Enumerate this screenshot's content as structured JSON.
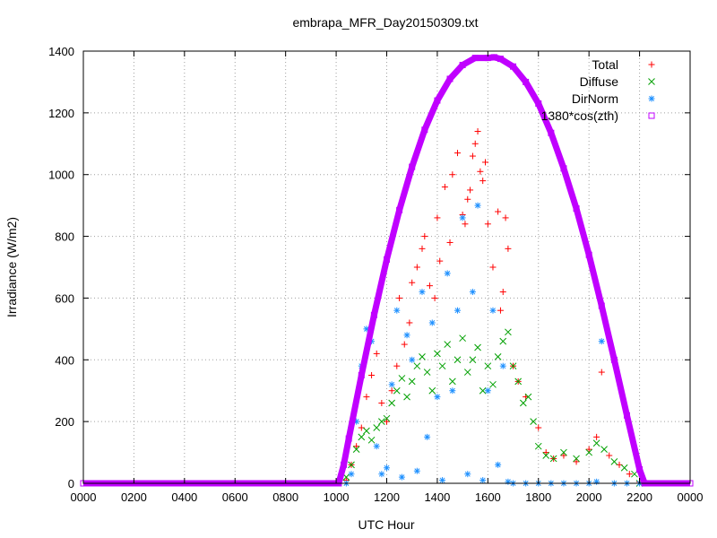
{
  "chart_data": {
    "type": "scatter",
    "title": "embrapa_MFR_Day20150309.txt",
    "xlabel": "UTC Hour",
    "ylabel": "Irradiance (W/m2)",
    "xlim": [
      0,
      24
    ],
    "ylim": [
      0,
      1400
    ],
    "grid": true,
    "legend_position": "top-right",
    "x_ticks": [
      {
        "v": 0,
        "label": "0000"
      },
      {
        "v": 2,
        "label": "0200"
      },
      {
        "v": 4,
        "label": "0400"
      },
      {
        "v": 6,
        "label": "0600"
      },
      {
        "v": 8,
        "label": "0800"
      },
      {
        "v": 10,
        "label": "1000"
      },
      {
        "v": 12,
        "label": "1200"
      },
      {
        "v": 14,
        "label": "1400"
      },
      {
        "v": 16,
        "label": "1600"
      },
      {
        "v": 18,
        "label": "1800"
      },
      {
        "v": 20,
        "label": "2000"
      },
      {
        "v": 22,
        "label": "2200"
      },
      {
        "v": 24,
        "label": "0000"
      }
    ],
    "y_ticks": [
      0,
      200,
      400,
      600,
      800,
      1000,
      1200,
      1400
    ],
    "series": [
      {
        "name": "Total",
        "marker": "plus",
        "color": "#ff0000",
        "x": [
          10.4,
          10.6,
          10.8,
          11.0,
          11.2,
          11.4,
          11.6,
          11.8,
          12.0,
          12.2,
          12.4,
          12.5,
          12.7,
          12.9,
          13.0,
          13.2,
          13.4,
          13.5,
          13.7,
          13.9,
          14.0,
          14.1,
          14.3,
          14.5,
          14.6,
          14.8,
          15.0,
          15.1,
          15.2,
          15.3,
          15.4,
          15.5,
          15.6,
          15.7,
          15.8,
          15.9,
          16.0,
          16.2,
          16.4,
          16.5,
          16.6,
          16.7,
          16.8,
          17.0,
          17.2,
          17.5,
          18.0,
          18.3,
          18.6,
          19.0,
          19.5,
          20.0,
          20.3,
          20.5,
          20.8,
          21.2,
          21.6,
          22.0,
          22.2
        ],
        "y": [
          10,
          60,
          120,
          180,
          280,
          350,
          420,
          260,
          200,
          300,
          380,
          600,
          450,
          520,
          650,
          700,
          760,
          800,
          640,
          600,
          860,
          720,
          960,
          780,
          1000,
          1070,
          870,
          840,
          920,
          950,
          1060,
          1100,
          1140,
          1010,
          980,
          1040,
          840,
          700,
          880,
          560,
          620,
          860,
          760,
          380,
          330,
          280,
          180,
          100,
          80,
          90,
          70,
          110,
          150,
          360,
          90,
          60,
          30,
          5,
          0
        ]
      },
      {
        "name": "Diffuse",
        "marker": "cross",
        "color": "#00a000",
        "x": [
          10.4,
          10.6,
          10.8,
          11.0,
          11.2,
          11.4,
          11.6,
          11.8,
          12.0,
          12.2,
          12.4,
          12.6,
          12.8,
          13.0,
          13.2,
          13.4,
          13.6,
          13.8,
          14.0,
          14.2,
          14.4,
          14.6,
          14.8,
          15.0,
          15.2,
          15.4,
          15.6,
          15.8,
          16.0,
          16.2,
          16.4,
          16.6,
          16.8,
          17.0,
          17.2,
          17.4,
          17.6,
          17.8,
          18.0,
          18.3,
          18.6,
          19.0,
          19.5,
          20.0,
          20.3,
          20.6,
          21.0,
          21.4,
          21.8,
          22.0
        ],
        "y": [
          20,
          60,
          110,
          150,
          170,
          140,
          180,
          200,
          210,
          260,
          300,
          340,
          280,
          330,
          380,
          410,
          360,
          300,
          420,
          380,
          450,
          330,
          400,
          470,
          360,
          400,
          440,
          300,
          380,
          320,
          410,
          460,
          490,
          380,
          330,
          260,
          280,
          200,
          120,
          90,
          80,
          100,
          80,
          100,
          130,
          110,
          70,
          50,
          30,
          0
        ]
      },
      {
        "name": "DirNorm",
        "marker": "star",
        "color": "#1e90ff",
        "x": [
          10.4,
          10.6,
          10.8,
          11.0,
          11.2,
          11.4,
          11.6,
          11.8,
          12.0,
          12.2,
          12.4,
          12.6,
          12.8,
          13.0,
          13.2,
          13.4,
          13.6,
          13.8,
          14.0,
          14.2,
          14.4,
          14.6,
          14.8,
          15.0,
          15.2,
          15.4,
          15.6,
          15.8,
          16.0,
          16.2,
          16.4,
          16.6,
          16.8,
          17.0,
          17.5,
          18.0,
          18.5,
          19.0,
          19.5,
          20.0,
          20.3,
          20.5,
          21.0,
          21.5,
          22.0
        ],
        "y": [
          0,
          30,
          200,
          380,
          500,
          460,
          120,
          30,
          50,
          320,
          560,
          20,
          480,
          400,
          40,
          620,
          150,
          520,
          280,
          10,
          680,
          300,
          560,
          860,
          30,
          620,
          900,
          10,
          300,
          560,
          60,
          380,
          5,
          0,
          0,
          0,
          0,
          0,
          0,
          0,
          5,
          460,
          0,
          0,
          0
        ]
      },
      {
        "name": "1380*cos(zth)",
        "marker": "square",
        "color": "#c000ff",
        "x": [
          0,
          2,
          4,
          6,
          8,
          9.5,
          10.1,
          10.3,
          10.5,
          11.0,
          11.5,
          12.0,
          12.5,
          13.0,
          13.5,
          14.0,
          14.5,
          15.0,
          15.5,
          16.0,
          16.25,
          16.5,
          17.0,
          17.5,
          18.0,
          18.5,
          19.0,
          19.5,
          20.0,
          20.5,
          21.0,
          21.5,
          22.0,
          22.2,
          22.4,
          23,
          24
        ],
        "y": [
          0,
          0,
          0,
          0,
          0,
          0,
          0,
          60,
          145,
          350,
          545,
          725,
          885,
          1025,
          1145,
          1240,
          1310,
          1355,
          1378,
          1378,
          1380,
          1375,
          1350,
          1300,
          1230,
          1135,
          1020,
          890,
          740,
          575,
          400,
          220,
          45,
          0,
          0,
          0,
          0
        ]
      }
    ]
  }
}
